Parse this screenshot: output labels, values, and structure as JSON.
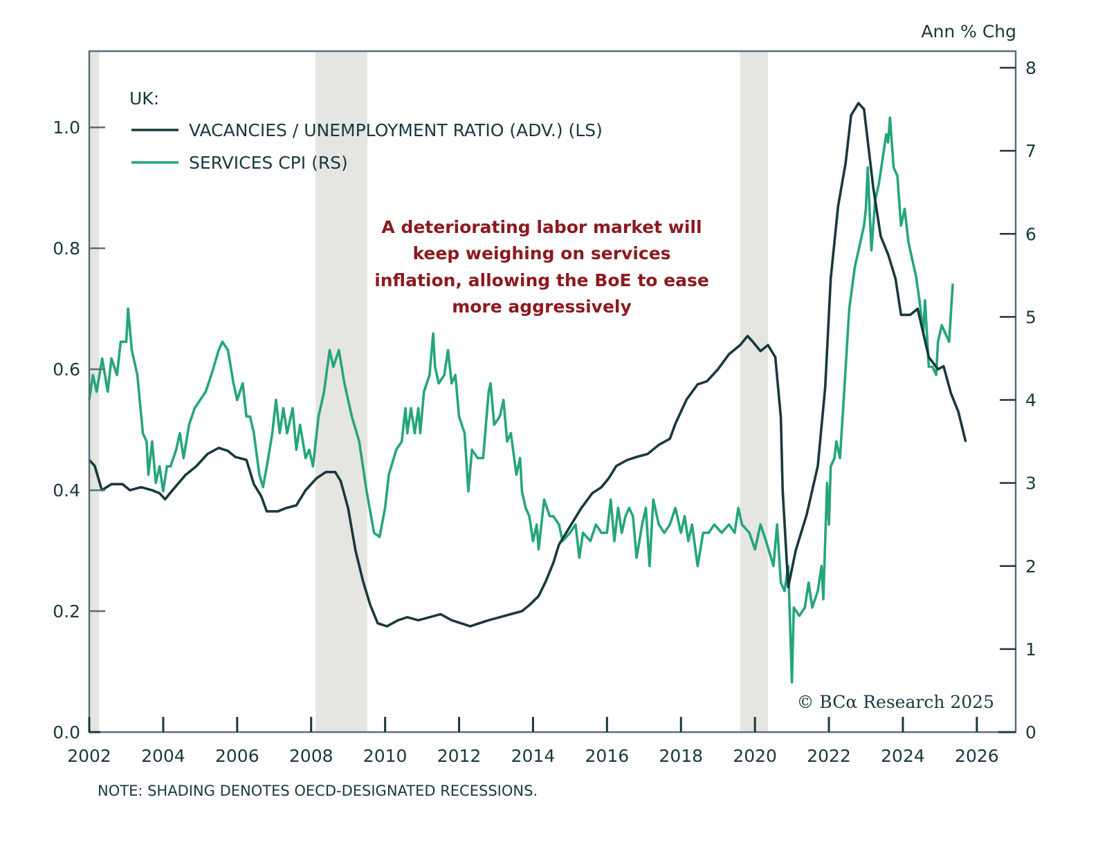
{
  "chart_data": {
    "type": "line",
    "region_label": "UK:",
    "right_axis_title": "Ann % Chg",
    "annotation": [
      "A deteriorating labor market will",
      "keep weighing on services",
      "inflation, allowing the BoE to ease",
      "more aggressively"
    ],
    "note": "NOTE: SHADING DENOTES OECD-DESIGNATED RECESSIONS.",
    "copyright": "© BCα Research 2025",
    "xlim": [
      2002,
      2027.05
    ],
    "x_ticks": [
      2002,
      2004,
      2006,
      2008,
      2010,
      2012,
      2014,
      2016,
      2018,
      2020,
      2022,
      2024,
      2026
    ],
    "x_tick_labels": [
      "2002",
      "2004",
      "2006",
      "2008",
      "2010",
      "2012",
      "2014",
      "2016",
      "2018",
      "2020",
      "2022",
      "2024",
      "2026"
    ],
    "left_axis": {
      "ylim": [
        0,
        1.126
      ],
      "ticks": [
        0.0,
        0.2,
        0.4,
        0.6,
        0.8,
        1.0
      ],
      "tick_labels": [
        "0.0",
        "0.2",
        "0.4",
        "0.6",
        "0.8",
        "1.0"
      ]
    },
    "right_axis": {
      "ylim": [
        0,
        8.2
      ],
      "ticks": [
        0,
        1,
        2,
        3,
        4,
        5,
        6,
        7,
        8
      ],
      "tick_labels": [
        "0",
        "1",
        "2",
        "3",
        "4",
        "5",
        "6",
        "7",
        "8"
      ]
    },
    "recessions": [
      [
        2002.0,
        2002.27
      ],
      [
        2008.12,
        2009.52
      ],
      [
        2019.6,
        2020.35
      ]
    ],
    "grid": false,
    "legend_position": "top-left",
    "colors": {
      "vu": "#17393d",
      "cpi": "#26a57c",
      "shading": "#e5e5e1",
      "axis": "#56707a",
      "annotation": "#8b1a1f"
    },
    "series": [
      {
        "name": "VACANCIES / UNEMPLOYMENT RATIO (ADV.) (LS)",
        "axis": "left",
        "x": [
          2002.0,
          2002.15,
          2002.34,
          2002.6,
          2002.9,
          2003.1,
          2003.4,
          2003.7,
          2003.9,
          2004.05,
          2004.25,
          2004.6,
          2004.9,
          2005.2,
          2005.5,
          2005.75,
          2005.95,
          2006.25,
          2006.45,
          2006.65,
          2006.8,
          2007.1,
          2007.3,
          2007.6,
          2007.85,
          2008.15,
          2008.4,
          2008.65,
          2008.8,
          2009.0,
          2009.2,
          2009.4,
          2009.6,
          2009.8,
          2010.05,
          2010.35,
          2010.6,
          2010.9,
          2011.2,
          2011.5,
          2011.8,
          2012.05,
          2012.3,
          2012.55,
          2012.8,
          2013.1,
          2013.4,
          2013.7,
          2013.9,
          2014.15,
          2014.35,
          2014.55,
          2014.7,
          2015.0,
          2015.3,
          2015.6,
          2015.85,
          2016.05,
          2016.25,
          2016.55,
          2016.8,
          2017.1,
          2017.4,
          2017.7,
          2017.85,
          2018.15,
          2018.45,
          2018.7,
          2019.0,
          2019.3,
          2019.6,
          2019.8,
          2019.95,
          2020.15,
          2020.35,
          2020.55,
          2020.7,
          2020.75,
          2020.9,
          2021.1,
          2021.4,
          2021.7,
          2021.9,
          2022.05,
          2022.25,
          2022.45,
          2022.6,
          2022.8,
          2022.95,
          2023.2,
          2023.4,
          2023.6,
          2023.8,
          2023.95,
          2024.2,
          2024.4,
          2024.55,
          2024.7,
          2024.95,
          2025.1,
          2025.3,
          2025.5,
          2025.7
        ],
        "values": [
          0.45,
          0.44,
          0.4,
          0.41,
          0.41,
          0.4,
          0.405,
          0.4,
          0.395,
          0.385,
          0.4,
          0.425,
          0.44,
          0.46,
          0.47,
          0.465,
          0.455,
          0.45,
          0.41,
          0.39,
          0.365,
          0.365,
          0.37,
          0.375,
          0.4,
          0.42,
          0.43,
          0.43,
          0.415,
          0.37,
          0.3,
          0.25,
          0.21,
          0.18,
          0.175,
          0.185,
          0.19,
          0.185,
          0.19,
          0.195,
          0.185,
          0.18,
          0.175,
          0.18,
          0.185,
          0.19,
          0.195,
          0.2,
          0.21,
          0.225,
          0.25,
          0.28,
          0.31,
          0.34,
          0.37,
          0.395,
          0.405,
          0.42,
          0.44,
          0.45,
          0.455,
          0.46,
          0.475,
          0.485,
          0.51,
          0.55,
          0.575,
          0.58,
          0.6,
          0.625,
          0.64,
          0.655,
          0.645,
          0.63,
          0.64,
          0.62,
          0.52,
          0.4,
          0.24,
          0.3,
          0.36,
          0.44,
          0.57,
          0.75,
          0.87,
          0.94,
          1.02,
          1.04,
          1.03,
          0.9,
          0.82,
          0.79,
          0.75,
          0.69,
          0.69,
          0.7,
          0.66,
          0.62,
          0.6,
          0.605,
          0.56,
          0.53,
          0.48
        ]
      },
      {
        "name": "SERVICES CPI (RS)",
        "axis": "right",
        "x": [
          2002.0,
          2002.1,
          2002.2,
          2002.35,
          2002.5,
          2002.6,
          2002.75,
          2002.85,
          2003.0,
          2003.05,
          2003.15,
          2003.3,
          2003.45,
          2003.55,
          2003.6,
          2003.7,
          2003.8,
          2003.9,
          2004.0,
          2004.1,
          2004.2,
          2004.35,
          2004.45,
          2004.55,
          2004.7,
          2004.85,
          2005.0,
          2005.15,
          2005.3,
          2005.5,
          2005.6,
          2005.75,
          2005.9,
          2006.0,
          2006.15,
          2006.25,
          2006.35,
          2006.45,
          2006.6,
          2006.7,
          2006.8,
          2006.95,
          2007.05,
          2007.15,
          2007.25,
          2007.35,
          2007.5,
          2007.6,
          2007.7,
          2007.85,
          2007.95,
          2008.05,
          2008.2,
          2008.35,
          2008.5,
          2008.6,
          2008.75,
          2008.9,
          2009.1,
          2009.3,
          2009.5,
          2009.7,
          2009.85,
          2010.0,
          2010.1,
          2010.3,
          2010.45,
          2010.55,
          2010.6,
          2010.7,
          2010.8,
          2010.9,
          2010.95,
          2011.05,
          2011.2,
          2011.3,
          2011.35,
          2011.45,
          2011.6,
          2011.7,
          2011.8,
          2011.9,
          2012.0,
          2012.15,
          2012.25,
          2012.35,
          2012.5,
          2012.65,
          2012.8,
          2012.85,
          2012.95,
          2013.1,
          2013.2,
          2013.3,
          2013.4,
          2013.55,
          2013.65,
          2013.7,
          2013.8,
          2013.9,
          2014.0,
          2014.1,
          2014.15,
          2014.3,
          2014.45,
          2014.55,
          2014.7,
          2014.8,
          2015.0,
          2015.15,
          2015.25,
          2015.35,
          2015.55,
          2015.7,
          2015.85,
          2016.0,
          2016.1,
          2016.2,
          2016.3,
          2016.4,
          2016.5,
          2016.6,
          2016.7,
          2016.8,
          2016.95,
          2017.05,
          2017.15,
          2017.25,
          2017.4,
          2017.55,
          2017.7,
          2017.85,
          2018.0,
          2018.1,
          2018.2,
          2018.3,
          2018.45,
          2018.6,
          2018.75,
          2018.9,
          2019.1,
          2019.3,
          2019.45,
          2019.55,
          2019.65,
          2019.85,
          2020.0,
          2020.15,
          2020.3,
          2020.5,
          2020.6,
          2020.7,
          2020.8,
          2020.9,
          2021.0,
          2021.05,
          2021.2,
          2021.35,
          2021.45,
          2021.55,
          2021.7,
          2021.8,
          2021.85,
          2021.95,
          2022.0,
          2022.05,
          2022.15,
          2022.2,
          2022.3,
          2022.4,
          2022.55,
          2022.7,
          2022.85,
          2022.95,
          2023.0,
          2023.05,
          2023.15,
          2023.25,
          2023.35,
          2023.45,
          2023.55,
          2023.6,
          2023.65,
          2023.75,
          2023.85,
          2023.95,
          2024.05,
          2024.15,
          2024.25,
          2024.35,
          2024.45,
          2024.55,
          2024.6,
          2024.7,
          2024.8,
          2024.9,
          2024.95,
          2025.05,
          2025.15,
          2025.25,
          2025.35
        ],
        "values": [
          4.0,
          4.3,
          4.1,
          4.5,
          4.1,
          4.5,
          4.3,
          4.7,
          4.7,
          5.1,
          4.6,
          4.3,
          3.6,
          3.5,
          3.1,
          3.5,
          3.0,
          3.2,
          2.9,
          3.2,
          3.2,
          3.4,
          3.6,
          3.3,
          3.7,
          3.9,
          4.0,
          4.1,
          4.3,
          4.6,
          4.7,
          4.6,
          4.2,
          4.0,
          4.2,
          3.8,
          3.8,
          3.6,
          3.1,
          2.95,
          3.2,
          3.6,
          4.0,
          3.6,
          3.9,
          3.6,
          3.9,
          3.4,
          3.7,
          3.3,
          3.4,
          3.2,
          3.8,
          4.1,
          4.6,
          4.4,
          4.6,
          4.2,
          3.8,
          3.5,
          2.9,
          2.4,
          2.35,
          2.7,
          3.1,
          3.4,
          3.5,
          3.9,
          3.6,
          3.9,
          3.6,
          3.9,
          3.6,
          4.1,
          4.3,
          4.8,
          4.4,
          4.2,
          4.3,
          4.6,
          4.2,
          4.3,
          3.8,
          3.6,
          2.9,
          3.4,
          3.3,
          3.3,
          4.1,
          4.2,
          3.7,
          3.8,
          4.0,
          3.5,
          3.6,
          3.1,
          3.3,
          2.9,
          2.7,
          2.6,
          2.3,
          2.5,
          2.2,
          2.8,
          2.6,
          2.6,
          2.5,
          2.3,
          2.4,
          2.5,
          2.1,
          2.4,
          2.3,
          2.5,
          2.4,
          2.4,
          2.8,
          2.3,
          2.7,
          2.4,
          2.6,
          2.7,
          2.6,
          2.1,
          2.5,
          2.7,
          2.0,
          2.8,
          2.5,
          2.4,
          2.5,
          2.7,
          2.4,
          2.6,
          2.3,
          2.5,
          2.0,
          2.4,
          2.4,
          2.5,
          2.4,
          2.5,
          2.4,
          2.7,
          2.5,
          2.4,
          2.2,
          2.5,
          2.3,
          2.0,
          2.5,
          1.8,
          1.7,
          2.0,
          0.6,
          1.5,
          1.4,
          1.5,
          1.8,
          1.5,
          1.7,
          2.0,
          1.6,
          3.0,
          2.5,
          3.2,
          3.3,
          3.5,
          3.3,
          4.0,
          5.1,
          5.6,
          5.9,
          6.1,
          6.3,
          6.8,
          5.8,
          6.4,
          6.6,
          6.9,
          7.2,
          7.1,
          7.4,
          6.8,
          6.7,
          6.1,
          6.3,
          5.9,
          5.7,
          5.5,
          5.2,
          4.8,
          5.2,
          4.4,
          4.4,
          4.3,
          4.7,
          4.9,
          4.8,
          4.7,
          5.4
        ]
      }
    ]
  }
}
